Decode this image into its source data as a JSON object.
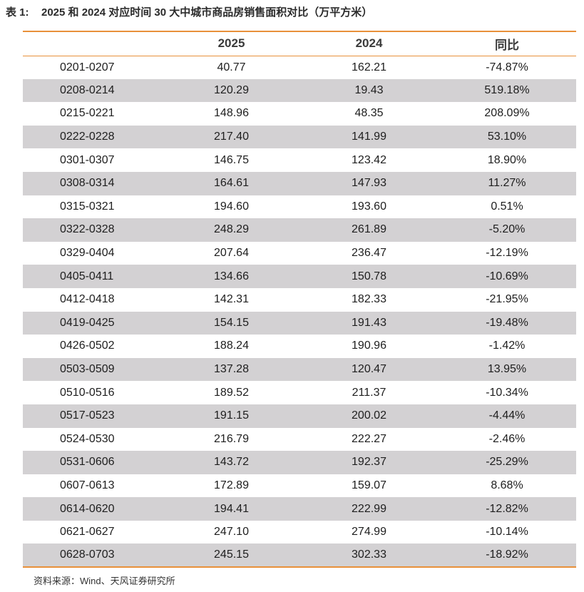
{
  "caption": {
    "label": "表 1:",
    "title": "2025 和 2024 对应时间 30 大中城市商品房销售面积对比（万平方米）"
  },
  "table": {
    "headers": [
      "",
      "2025",
      "2024",
      "同比"
    ],
    "rows": [
      [
        "0201-0207",
        "40.77",
        "162.21",
        "-74.87%"
      ],
      [
        "0208-0214",
        "120.29",
        "19.43",
        "519.18%"
      ],
      [
        "0215-0221",
        "148.96",
        "48.35",
        "208.09%"
      ],
      [
        "0222-0228",
        "217.40",
        "141.99",
        "53.10%"
      ],
      [
        "0301-0307",
        "146.75",
        "123.42",
        "18.90%"
      ],
      [
        "0308-0314",
        "164.61",
        "147.93",
        "11.27%"
      ],
      [
        "0315-0321",
        "194.60",
        "193.60",
        "0.51%"
      ],
      [
        "0322-0328",
        "248.29",
        "261.89",
        "-5.20%"
      ],
      [
        "0329-0404",
        "207.64",
        "236.47",
        "-12.19%"
      ],
      [
        "0405-0411",
        "134.66",
        "150.78",
        "-10.69%"
      ],
      [
        "0412-0418",
        "142.31",
        "182.33",
        "-21.95%"
      ],
      [
        "0419-0425",
        "154.15",
        "191.43",
        "-19.48%"
      ],
      [
        "0426-0502",
        "188.24",
        "190.96",
        "-1.42%"
      ],
      [
        "0503-0509",
        "137.28",
        "120.47",
        "13.95%"
      ],
      [
        "0510-0516",
        "189.52",
        "211.37",
        "-10.34%"
      ],
      [
        "0517-0523",
        "191.15",
        "200.02",
        "-4.44%"
      ],
      [
        "0524-0530",
        "216.79",
        "222.27",
        "-2.46%"
      ],
      [
        "0531-0606",
        "143.72",
        "192.37",
        "-25.29%"
      ],
      [
        "0607-0613",
        "172.89",
        "159.07",
        "8.68%"
      ],
      [
        "0614-0620",
        "194.41",
        "222.99",
        "-12.82%"
      ],
      [
        "0621-0627",
        "247.10",
        "274.99",
        "-10.14%"
      ],
      [
        "0628-0703",
        "245.15",
        "302.33",
        "-18.92%"
      ]
    ]
  },
  "source": "资料来源：Wind、天风证券研究所",
  "colors": {
    "accent_rule": "#e8903a",
    "stripe": "#d3d1d3"
  }
}
